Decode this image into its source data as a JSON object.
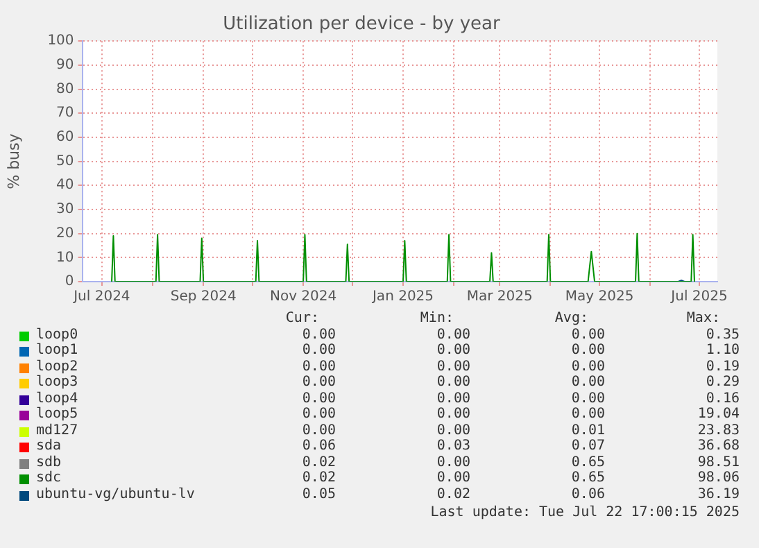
{
  "chart_data": {
    "type": "line",
    "title": "Utilization per device - by year",
    "ylabel": "% busy",
    "xlim": [
      "2024-06-19",
      "2025-07-12"
    ],
    "xticks": [
      {
        "value": "2024-07-01",
        "label": "Jul 2024"
      },
      {
        "value": "2024-08-01",
        "label": null
      },
      {
        "value": "2024-09-01",
        "label": "Sep 2024"
      },
      {
        "value": "2024-10-01",
        "label": null
      },
      {
        "value": "2024-11-01",
        "label": "Nov 2024"
      },
      {
        "value": "2024-12-01",
        "label": null
      },
      {
        "value": "2025-01-01",
        "label": "Jan 2025"
      },
      {
        "value": "2025-02-01",
        "label": null
      },
      {
        "value": "2025-03-01",
        "label": "Mar 2025"
      },
      {
        "value": "2025-04-01",
        "label": null
      },
      {
        "value": "2025-05-01",
        "label": "May 2025"
      },
      {
        "value": "2025-06-01",
        "label": null
      },
      {
        "value": "2025-07-01",
        "label": "Jul 2025"
      }
    ],
    "ylim": [
      0,
      100
    ],
    "yticks": [
      0,
      10,
      20,
      30,
      40,
      50,
      60,
      70,
      80,
      90,
      100
    ],
    "grid": true,
    "legend": "bottom",
    "marker": "none",
    "line_style": "solid",
    "series": [
      {
        "name": "loop0",
        "color": "#00cc00"
      },
      {
        "name": "loop1",
        "color": "#0066b3"
      },
      {
        "name": "loop2",
        "color": "#ff8000"
      },
      {
        "name": "loop3",
        "color": "#ffcc00"
      },
      {
        "name": "loop4",
        "color": "#330099"
      },
      {
        "name": "loop5",
        "color": "#990099"
      },
      {
        "name": "md127",
        "color": "#ccff00"
      },
      {
        "name": "sda",
        "color": "#ff0000"
      },
      {
        "name": "sdb",
        "color": "#808080"
      },
      {
        "name": "sdc",
        "color": "#008f00",
        "x": [
          "2024-07-07",
          "2024-07-08",
          "2024-07-09",
          "2024-08-03",
          "2024-08-04",
          "2024-08-05",
          "2024-08-30",
          "2024-08-31",
          "2024-09-01",
          "2024-10-03",
          "2024-10-04",
          "2024-10-05",
          "2024-11-01",
          "2024-11-02",
          "2024-11-03",
          "2024-11-27",
          "2024-11-28",
          "2024-11-29",
          "2025-01-01",
          "2025-01-02",
          "2025-01-03",
          "2025-01-28",
          "2025-01-29",
          "2025-01-30",
          "2025-02-23",
          "2025-02-24",
          "2025-02-25",
          "2025-03-30",
          "2025-03-31",
          "2025-04-01",
          "2025-04-24",
          "2025-04-26",
          "2025-04-28",
          "2025-05-23",
          "2025-05-24",
          "2025-05-25",
          "2025-06-26",
          "2025-06-27",
          "2025-06-28"
        ],
        "values": [
          0,
          19,
          0,
          0,
          19.5,
          0,
          0,
          18,
          0,
          0,
          17,
          0,
          0,
          19.5,
          0,
          0,
          15.5,
          0,
          0,
          17,
          0,
          0,
          19.5,
          0,
          0,
          12,
          0,
          0,
          19.5,
          0,
          0,
          12.5,
          0,
          0,
          20,
          0,
          0,
          19.5,
          0
        ]
      },
      {
        "name": "ubuntu-vg/ubuntu-lv",
        "color": "#00487d",
        "x": [
          "2025-06-18",
          "2025-06-20",
          "2025-06-22"
        ],
        "values": [
          0,
          0.5,
          0
        ]
      }
    ],
    "annotations": [
      "Cur:",
      "Min:",
      "Avg:",
      "Max:",
      "0.00",
      "0.00",
      "0.00",
      "0.35",
      "0.00",
      "0.00",
      "0.00",
      "1.10",
      "0.00",
      "0.00",
      "0.00",
      "0.19",
      "0.00",
      "0.00",
      "0.00",
      "0.29",
      "0.00",
      "0.00",
      "0.00",
      "0.16",
      "0.00",
      "0.00",
      "0.00",
      "19.04",
      "0.00",
      "0.00",
      "0.01",
      "23.83",
      "0.06",
      "0.03",
      "0.07",
      "36.68",
      "0.02",
      "0.00",
      "0.65",
      "98.51",
      "0.02",
      "0.00",
      "0.65",
      "98.06",
      "0.05",
      "0.02",
      "0.06",
      "36.19",
      "Last update: Tue Jul 22 17:00:15 2025"
    ]
  }
}
